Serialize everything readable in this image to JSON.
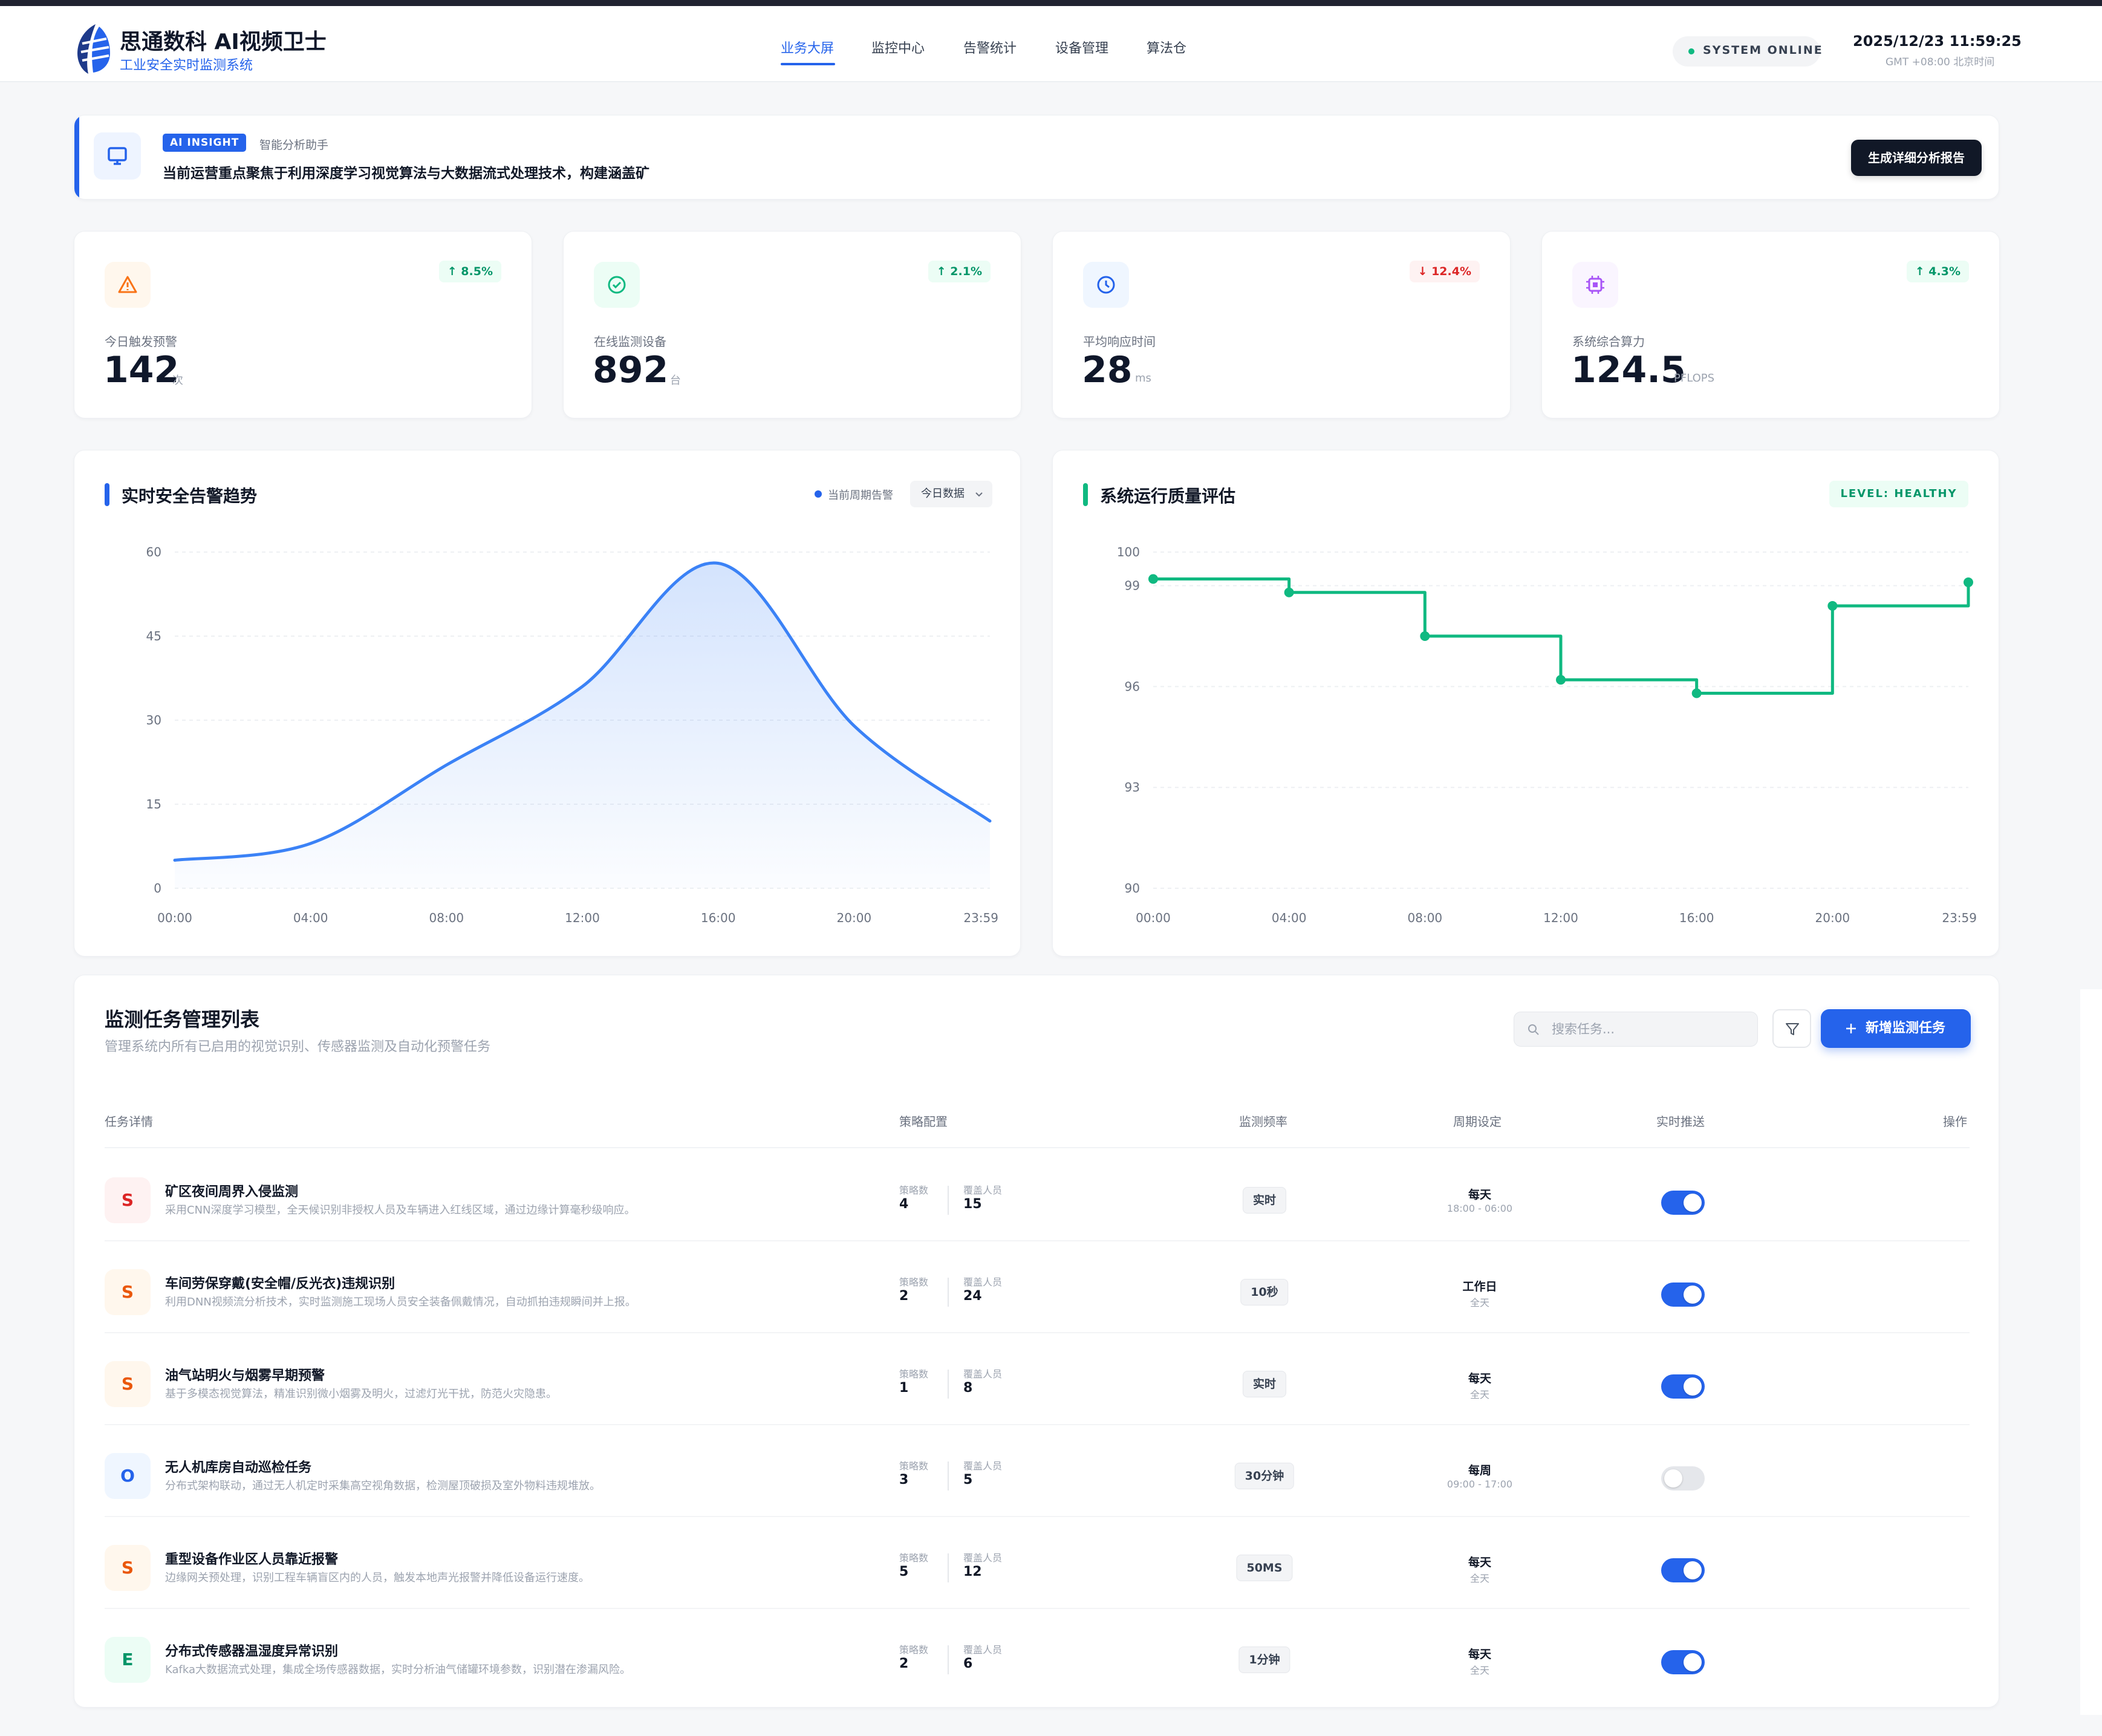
{
  "header": {
    "brand_title": "思通数科 AI视频卫士",
    "brand_subtitle": "工业安全实时监测系统",
    "nav": [
      {
        "label": "业务大屏",
        "active": true
      },
      {
        "label": "监控中心",
        "active": false
      },
      {
        "label": "告警统计",
        "active": false
      },
      {
        "label": "设备管理",
        "active": false
      },
      {
        "label": "算法仓",
        "active": false
      }
    ],
    "status": "SYSTEM ONLINE",
    "datetime": "2025/12/23 11:59:25",
    "timezone": "GMT +08:00 北京时间"
  },
  "insight": {
    "badge": "AI INSIGHT",
    "subtitle": "智能分析助手",
    "text": "当前运营重点聚焦于利用深度学习视觉算法与大数据流式处理技术，构建涵盖矿",
    "button": "生成详细分析报告"
  },
  "stats": [
    {
      "label": "今日触发预警",
      "value": "142",
      "unit": "次",
      "trend": "↑ 8.5%",
      "direction": "up",
      "icon": "warning-icon",
      "color": "#f97316"
    },
    {
      "label": "在线监测设备",
      "value": "892",
      "unit": "台",
      "trend": "↑ 2.1%",
      "direction": "up",
      "icon": "check-circle-icon",
      "color": "#10b981"
    },
    {
      "label": "平均响应时间",
      "value": "28",
      "unit": "ms",
      "trend": "↓ 12.4%",
      "direction": "down",
      "icon": "clock-icon",
      "color": "#2563eb"
    },
    {
      "label": "系统综合算力",
      "value": "124.5",
      "unit": "PFLOPS",
      "trend": "↑ 4.3%",
      "direction": "up",
      "icon": "cpu-icon",
      "color": "#a855f7"
    }
  ],
  "trend_card": {
    "title": "实时安全告警趋势",
    "legend": "当前周期告警",
    "select": "今日数据"
  },
  "quality_card": {
    "title": "系统运行质量评估",
    "level": "LEVEL: HEALTHY"
  },
  "chart_data": [
    {
      "type": "area",
      "title": "实时安全告警趋势",
      "x": [
        "00:00",
        "04:00",
        "08:00",
        "12:00",
        "16:00",
        "20:00",
        "23:59"
      ],
      "series": [
        {
          "name": "当前周期告警",
          "values": [
            5,
            8,
            22,
            36,
            58,
            29,
            12
          ]
        }
      ],
      "yticks": [
        0,
        15,
        30,
        45,
        60
      ],
      "ylim": [
        0,
        60
      ],
      "grid": true,
      "color": "#3b82f6"
    },
    {
      "type": "line",
      "step": true,
      "title": "系统运行质量评估",
      "x": [
        "00:00",
        "04:00",
        "08:00",
        "12:00",
        "16:00",
        "20:00",
        "23:59"
      ],
      "series": [
        {
          "values": [
            99.2,
            98.8,
            97.5,
            96.2,
            95.8,
            98.4,
            99.1
          ]
        }
      ],
      "yticks": [
        90,
        93,
        96,
        99,
        100
      ],
      "ylim": [
        90,
        100
      ],
      "grid": true,
      "color": "#10b981"
    }
  ],
  "tasks": {
    "title": "监测任务管理列表",
    "subtitle": "管理系统内所有已启用的视觉识别、传感器监测及自动化预警任务",
    "search_placeholder": "搜索任务...",
    "add_button": "新增监测任务",
    "columns": [
      "任务详情",
      "策略配置",
      "监测频率",
      "周期设定",
      "实时推送",
      "操作"
    ],
    "strategy_label": "策略数",
    "people_label": "覆盖人员",
    "rows": [
      {
        "initial": "S",
        "name": "矿区夜间周界入侵监测",
        "desc": "采用CNN深度学习模型，全天候识别非授权人员及车辆进入红线区域，通过边缘计算毫秒级响应。",
        "strategies": "4",
        "people": "15",
        "freq": "实时",
        "cycle": "每天",
        "cycle_sub": "18:00 - 06:00",
        "push": true,
        "avatar_bg": "#fef2f2",
        "avatar_fg": "#dc2626"
      },
      {
        "initial": "S",
        "name": "车间劳保穿戴(安全帽/反光衣)违规识别",
        "desc": "利用DNN视频流分析技术，实时监测施工现场人员安全装备佩戴情况，自动抓拍违规瞬间并上报。",
        "strategies": "2",
        "people": "24",
        "freq": "10秒",
        "cycle": "工作日",
        "cycle_sub": "全天",
        "push": true,
        "avatar_bg": "#fff7ed",
        "avatar_fg": "#ea580c"
      },
      {
        "initial": "S",
        "name": "油气站明火与烟雾早期预警",
        "desc": "基于多模态视觉算法，精准识别微小烟雾及明火，过滤灯光干扰，防范火灾隐患。",
        "strategies": "1",
        "people": "8",
        "freq": "实时",
        "cycle": "每天",
        "cycle_sub": "全天",
        "push": true,
        "avatar_bg": "#fff7ed",
        "avatar_fg": "#ea580c"
      },
      {
        "initial": "O",
        "name": "无人机库房自动巡检任务",
        "desc": "分布式架构联动，通过无人机定时采集高空视角数据，检测屋顶破损及室外物料违规堆放。",
        "strategies": "3",
        "people": "5",
        "freq": "30分钟",
        "cycle": "每周",
        "cycle_sub": "09:00 - 17:00",
        "push": false,
        "avatar_bg": "#eff6ff",
        "avatar_fg": "#2563eb"
      },
      {
        "initial": "S",
        "name": "重型设备作业区人员靠近报警",
        "desc": "边缘网关预处理，识别工程车辆盲区内的人员，触发本地声光报警并降低设备运行速度。",
        "strategies": "5",
        "people": "12",
        "freq": "50MS",
        "cycle": "每天",
        "cycle_sub": "全天",
        "push": true,
        "avatar_bg": "#fff7ed",
        "avatar_fg": "#ea580c"
      },
      {
        "initial": "E",
        "name": "分布式传感器温湿度异常识别",
        "desc": "Kafka大数据流式处理，集成全场传感器数据，实时分析油气储罐环境参数，识别潜在渗漏风险。",
        "strategies": "2",
        "people": "6",
        "freq": "1分钟",
        "cycle": "每天",
        "cycle_sub": "全天",
        "push": true,
        "avatar_bg": "#ecfdf5",
        "avatar_fg": "#059669"
      }
    ]
  }
}
